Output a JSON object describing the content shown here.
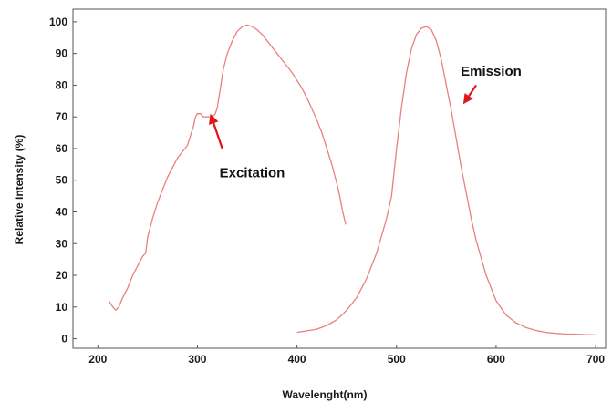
{
  "chart_data": {
    "type": "line",
    "title": "",
    "xlabel": "Wavelenght(nm)",
    "ylabel": "Relative Intensity (%)",
    "xlim": [
      175,
      710
    ],
    "ylim": [
      -3,
      104
    ],
    "xticks": [
      200,
      300,
      400,
      500,
      600,
      700
    ],
    "yticks": [
      0,
      10,
      20,
      30,
      40,
      50,
      60,
      70,
      80,
      90,
      100
    ],
    "grid": false,
    "legend": "none",
    "line_color": "#e88080",
    "arrow_color": "#e0141b",
    "series": [
      {
        "x": [
          211,
          215,
          218,
          221,
          225,
          230,
          235,
          240,
          245,
          248,
          250,
          255,
          260,
          265,
          270,
          275,
          280,
          285,
          290,
          293,
          296,
          298,
          300,
          303,
          306,
          310,
          315,
          318,
          320,
          323,
          326,
          330,
          335,
          340,
          345,
          350,
          355,
          360,
          365,
          370,
          375,
          380,
          385,
          390,
          395,
          400,
          405,
          410,
          415,
          420,
          425,
          430,
          435,
          440,
          443,
          446,
          449
        ],
        "y": [
          12,
          10,
          9,
          10,
          13,
          16,
          20,
          23,
          26,
          27,
          32,
          38,
          43,
          47,
          51,
          54,
          57,
          59,
          61,
          64,
          67,
          70,
          71,
          71,
          70,
          70,
          70,
          71,
          73,
          79,
          85,
          90,
          94,
          97,
          98.5,
          99,
          98.5,
          97.5,
          96,
          94,
          92,
          90,
          88,
          86,
          84,
          81.5,
          79,
          76,
          72.5,
          69,
          65,
          60,
          55,
          49,
          45,
          40,
          36
        ]
      },
      {
        "x": [
          400,
          410,
          420,
          430,
          440,
          450,
          460,
          470,
          480,
          490,
          495,
          500,
          505,
          510,
          515,
          520,
          525,
          530,
          535,
          540,
          545,
          550,
          555,
          560,
          565,
          570,
          575,
          580,
          590,
          600,
          610,
          620,
          630,
          640,
          650,
          660,
          670,
          680,
          690,
          700
        ],
        "y": [
          2,
          2.5,
          3,
          4.2,
          6,
          9,
          13,
          19,
          27,
          38,
          45,
          60,
          73,
          84,
          91.5,
          96,
          98,
          98.5,
          97.5,
          94,
          88,
          80,
          72,
          63,
          54,
          46,
          38,
          31,
          20,
          12,
          7.5,
          5,
          3.5,
          2.6,
          2,
          1.7,
          1.5,
          1.4,
          1.3,
          1.2
        ]
      }
    ],
    "annotations": [
      {
        "text": "Excitation",
        "x": 355,
        "y": 51,
        "arrow_from": [
          325,
          60
        ],
        "arrow_to": [
          313,
          71
        ]
      },
      {
        "text": "Emission",
        "x": 595,
        "y": 83,
        "arrow_from": [
          580,
          80
        ],
        "arrow_to": [
          567,
          74
        ]
      }
    ]
  }
}
